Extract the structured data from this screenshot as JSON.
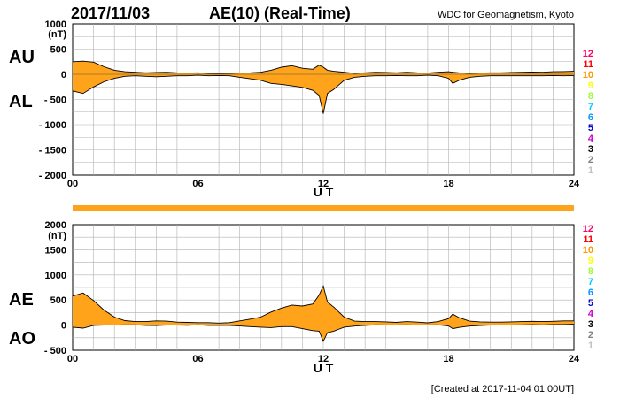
{
  "header": {
    "date": "2017/11/03",
    "title": "AE(10) (Real-Time)",
    "source": "WDC for Geomagnetism, Kyoto"
  },
  "footer": {
    "created": "[Created at 2017-11-04 01:00UT]"
  },
  "legend_numbers": [
    "12",
    "11",
    "10",
    "9",
    "8",
    "7",
    "6",
    "5",
    "4",
    "3",
    "2",
    "1"
  ],
  "legend_colors": [
    "#ff0066",
    "#ff0000",
    "#ff9900",
    "#ffff00",
    "#99ff33",
    "#00ccff",
    "#0099ff",
    "#0000cc",
    "#cc00cc",
    "#000000",
    "#808080",
    "#c0c0c0"
  ],
  "colors": {
    "fill": "#ffa31a",
    "line": "#000000",
    "grid": "#b0b0b0",
    "bar": "#ffa31a"
  },
  "chart_data": [
    {
      "type": "area",
      "name": "AU/AL",
      "series_labels": [
        "AU",
        "AL"
      ],
      "ylabel": "(nT)",
      "xlabel": "U T",
      "ylim": [
        -2000,
        1000
      ],
      "yticks": [
        1000,
        500,
        0,
        -500,
        -1000,
        -1500,
        -2000
      ],
      "ytick_labels": [
        "1000",
        "500",
        "0",
        "- 500",
        "- 1000",
        "- 1500",
        "- 2000"
      ],
      "xlim": [
        0,
        24
      ],
      "xticks": [
        "00",
        "06",
        "12",
        "18",
        "24"
      ],
      "x": [
        0,
        0.5,
        1,
        1.5,
        2,
        2.5,
        3,
        3.5,
        4,
        4.5,
        5,
        5.5,
        6,
        6.5,
        7,
        7.5,
        8,
        8.5,
        9,
        9.5,
        10,
        10.5,
        11,
        11.5,
        11.8,
        12,
        12.2,
        12.5,
        13,
        13.5,
        14,
        14.5,
        15,
        15.5,
        16,
        16.5,
        17,
        17.5,
        18,
        18.2,
        18.5,
        19,
        19.5,
        20,
        20.5,
        21,
        21.5,
        22,
        22.5,
        23,
        23.5,
        24
      ],
      "series": [
        {
          "name": "AU",
          "values": [
            250,
            260,
            240,
            150,
            80,
            50,
            40,
            30,
            35,
            40,
            30,
            25,
            30,
            20,
            15,
            20,
            25,
            30,
            40,
            80,
            140,
            170,
            120,
            100,
            180,
            140,
            80,
            60,
            40,
            20,
            30,
            40,
            35,
            30,
            40,
            30,
            25,
            40,
            50,
            40,
            30,
            20,
            25,
            30,
            30,
            35,
            40,
            45,
            40,
            50,
            55,
            60
          ]
        },
        {
          "name": "AL",
          "values": [
            -330,
            -380,
            -250,
            -150,
            -80,
            -40,
            -30,
            -40,
            -50,
            -40,
            -30,
            -30,
            -20,
            -30,
            -25,
            -30,
            -60,
            -90,
            -120,
            -180,
            -200,
            -230,
            -260,
            -320,
            -420,
            -780,
            -380,
            -300,
            -120,
            -60,
            -40,
            -30,
            -30,
            -25,
            -30,
            -30,
            -20,
            -30,
            -80,
            -180,
            -120,
            -60,
            -40,
            -30,
            -30,
            -30,
            -30,
            -30,
            -30,
            -25,
            -30,
            -25
          ]
        }
      ]
    },
    {
      "type": "area",
      "name": "AE/AO",
      "series_labels": [
        "AE",
        "AO"
      ],
      "ylabel": "(nT)",
      "xlabel": "U T",
      "ylim": [
        -500,
        2000
      ],
      "yticks": [
        2000,
        1500,
        1000,
        500,
        0,
        -500
      ],
      "ytick_labels": [
        "2000",
        "1500",
        "1000",
        "500",
        "0",
        "- 500"
      ],
      "xlim": [
        0,
        24
      ],
      "xticks": [
        "00",
        "06",
        "12",
        "18",
        "24"
      ],
      "x": [
        0,
        0.5,
        1,
        1.5,
        2,
        2.5,
        3,
        3.5,
        4,
        4.5,
        5,
        5.5,
        6,
        6.5,
        7,
        7.5,
        8,
        8.5,
        9,
        9.5,
        10,
        10.5,
        11,
        11.5,
        11.8,
        12,
        12.2,
        12.5,
        13,
        13.5,
        14,
        14.5,
        15,
        15.5,
        16,
        16.5,
        17,
        17.5,
        18,
        18.2,
        18.5,
        19,
        19.5,
        20,
        20.5,
        21,
        21.5,
        22,
        22.5,
        23,
        23.5,
        24
      ],
      "series": [
        {
          "name": "AE",
          "values": [
            580,
            640,
            490,
            300,
            160,
            90,
            70,
            70,
            85,
            80,
            60,
            55,
            50,
            50,
            40,
            50,
            85,
            120,
            160,
            260,
            340,
            400,
            380,
            420,
            600,
            780,
            460,
            360,
            160,
            80,
            70,
            70,
            65,
            55,
            70,
            60,
            45,
            70,
            130,
            220,
            150,
            80,
            65,
            60,
            60,
            65,
            70,
            75,
            70,
            75,
            85,
            85
          ]
        },
        {
          "name": "AO",
          "values": [
            -40,
            -60,
            -5,
            0,
            0,
            5,
            5,
            -5,
            -8,
            0,
            0,
            -3,
            5,
            -5,
            -5,
            -5,
            -18,
            -30,
            -40,
            -50,
            -30,
            -30,
            -70,
            -110,
            -120,
            -320,
            -150,
            -120,
            -40,
            -20,
            -5,
            5,
            3,
            3,
            5,
            0,
            3,
            5,
            -15,
            -70,
            -45,
            -20,
            -8,
            0,
            0,
            3,
            5,
            8,
            5,
            13,
            13,
            18
          ]
        }
      ]
    }
  ]
}
